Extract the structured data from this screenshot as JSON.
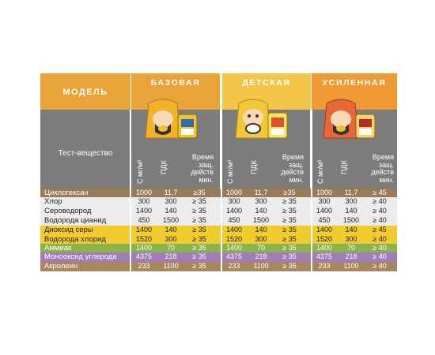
{
  "header": {
    "model_label": "МОДЕЛЬ",
    "products": [
      "БАЗОВАЯ",
      "ДЕТСКАЯ",
      "УСИЛЕННАЯ"
    ]
  },
  "test_substance_label": "Тест-вещество",
  "column_headers": {
    "concentration": "С мг/м³",
    "mac": "ПДК",
    "time": [
      "Время",
      "защ.",
      "действ",
      "мин."
    ]
  },
  "rows": [
    {
      "name": "Циклогексан",
      "color": "#9b7a5a",
      "values": [
        [
          "1000",
          "11,7",
          "≥35"
        ],
        [
          "1000",
          "11,7",
          "≥35"
        ],
        [
          "1000",
          "11,7",
          "≥ 45"
        ]
      ]
    },
    {
      "name": "Хлор",
      "color": "#ececec",
      "values": [
        [
          "300",
          "300",
          "≥ 35"
        ],
        [
          "300",
          "300",
          "≥ 35"
        ],
        [
          "300",
          "300",
          "≥ 40"
        ]
      ]
    },
    {
      "name": "Сероводород",
      "color": "#ececec",
      "values": [
        [
          "1400",
          "140",
          "≥ 35"
        ],
        [
          "1400",
          "140",
          "≥ 35"
        ],
        [
          "1400",
          "140",
          "≥ 40"
        ]
      ]
    },
    {
      "name": "Водорода цианид",
      "color": "#ececec",
      "values": [
        [
          "450",
          "1500",
          "≥ 35"
        ],
        [
          "450",
          "1500",
          "≥ 35"
        ],
        [
          "450",
          "1500",
          "≥ 40"
        ]
      ]
    },
    {
      "name": "Диоксид серы",
      "color": "#f2cc2e",
      "values": [
        [
          "1400",
          "140",
          "≥ 35"
        ],
        [
          "1400",
          "140",
          "≥ 35"
        ],
        [
          "1400",
          "140",
          "≥ 45"
        ]
      ]
    },
    {
      "name": "Водорода хлорид",
      "color": "#f2cc2e",
      "values": [
        [
          "1520",
          "300",
          "≥ 35"
        ],
        [
          "1520",
          "300",
          "≥ 35"
        ],
        [
          "1520",
          "300",
          "≥ 40"
        ]
      ]
    },
    {
      "name": "Аммиак",
      "color": "#8cb24a",
      "values": [
        [
          "1400",
          "70",
          "≥ 35"
        ],
        [
          "1400",
          "70",
          "≥ 35"
        ],
        [
          "1400",
          "70",
          "≥ 40"
        ]
      ]
    },
    {
      "name": "Монооксид углерода",
      "color": "#a07cb8",
      "values": [
        [
          "4375",
          "218",
          "≥ 35"
        ],
        [
          "4375",
          "218",
          "≥ 35"
        ],
        [
          "4375",
          "218",
          "≥ 40"
        ]
      ]
    },
    {
      "name": "Акролеин",
      "color": "#a8865e",
      "values": [
        [
          "233",
          "1100",
          "≥ 35"
        ],
        [
          "233",
          "1100",
          "≥ 35"
        ],
        [
          "233",
          "1100",
          "≥ 40"
        ]
      ]
    }
  ]
}
